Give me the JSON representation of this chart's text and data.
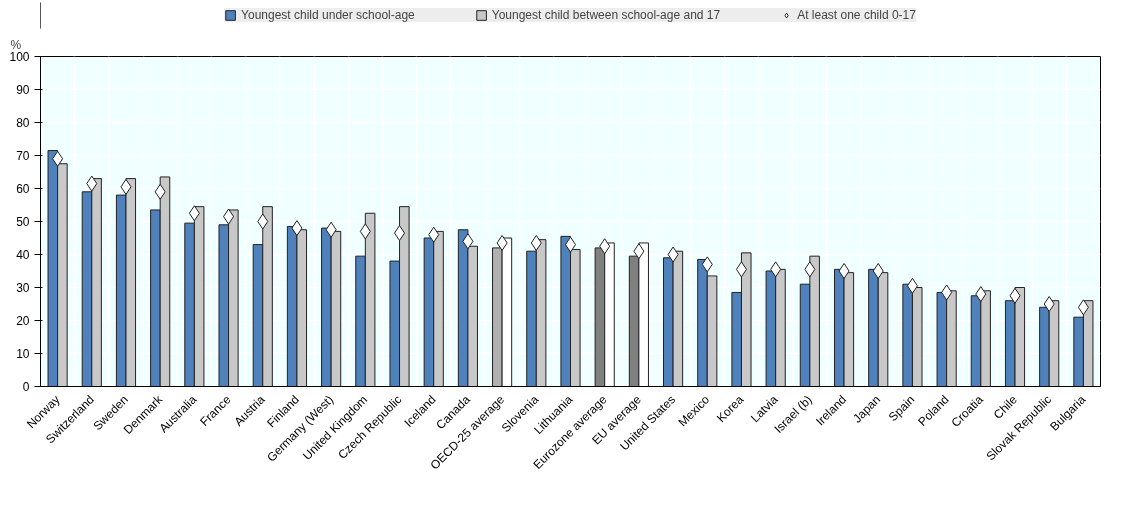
{
  "chart_data": {
    "type": "bar",
    "ylabel": "%",
    "categories": [
      "Norway",
      "Switzerland",
      "Sweden",
      "Denmark",
      "Australia",
      "France",
      "Austria",
      "Finland",
      "Germany (West)",
      "United Kingdom",
      "Czech Republic",
      "Iceland",
      "Canada",
      "OECD-25 average",
      "Slovenia",
      "Lithuania",
      "Eurozone average",
      "EU average",
      "United States",
      "Mexico",
      "Korea",
      "Latvia",
      "Israel (b)",
      "Ireland",
      "Japan",
      "Spain",
      "Poland",
      "Croatia",
      "Chile",
      "Slovak Republic",
      "Bulgaria"
    ],
    "series": [
      {
        "name": "Youngest child under school-age",
        "color": "#4f81bd",
        "colors": [
          "#4f81bd",
          "#4f81bd",
          "#4f81bd",
          "#4f81bd",
          "#4f81bd",
          "#4f81bd",
          "#4f81bd",
          "#4f81bd",
          "#4f81bd",
          "#4f81bd",
          "#4f81bd",
          "#4f81bd",
          "#4f81bd",
          "#b0b0b0",
          "#4f81bd",
          "#4f81bd",
          "#808080",
          "#808080",
          "#4f81bd",
          "#4f81bd",
          "#4f81bd",
          "#4f81bd",
          "#4f81bd",
          "#4f81bd",
          "#4f81bd",
          "#4f81bd",
          "#4f81bd",
          "#4f81bd",
          "#4f81bd",
          "#4f81bd",
          "#4f81bd"
        ],
        "values": [
          71.5,
          59,
          58,
          53.5,
          49.5,
          49,
          43,
          48.5,
          48,
          39.5,
          38,
          45,
          47.5,
          42,
          41,
          45.5,
          42,
          39.5,
          39,
          38.5,
          28.5,
          35,
          31,
          35.5,
          35.5,
          31,
          28.5,
          27.5,
          26,
          24,
          21
        ]
      },
      {
        "name": "Youngest child between school-age and 17",
        "color": "#c8c8c8",
        "colors": [
          "#c8c8c8",
          "#c8c8c8",
          "#c8c8c8",
          "#c8c8c8",
          "#c8c8c8",
          "#c8c8c8",
          "#c8c8c8",
          "#c8c8c8",
          "#c8c8c8",
          "#c8c8c8",
          "#c8c8c8",
          "#c8c8c8",
          "#c8c8c8",
          "#ffffff",
          "#c8c8c8",
          "#c8c8c8",
          "#ffffff",
          "#ffffff",
          "#c8c8c8",
          "#c8c8c8",
          "#c8c8c8",
          "#c8c8c8",
          "#c8c8c8",
          "#c8c8c8",
          "#c8c8c8",
          "#c8c8c8",
          "#c8c8c8",
          "#c8c8c8",
          "#c8c8c8",
          "#c8c8c8",
          "#c8c8c8"
        ],
        "values": [
          67.5,
          63,
          63,
          63.5,
          54.5,
          53.5,
          54.5,
          47.5,
          47,
          52.5,
          54.5,
          47,
          42.5,
          45,
          44.5,
          41.5,
          43.5,
          43.5,
          41,
          33.5,
          40.5,
          35.5,
          39.5,
          34.5,
          34.5,
          30,
          29,
          29,
          30,
          26,
          26
        ]
      },
      {
        "name": "At least one child 0-17",
        "type": "scatter",
        "marker": "diamond",
        "color": "#ffffff",
        "values": [
          69,
          61.5,
          60.5,
          59,
          52.5,
          51.5,
          50,
          48,
          47.5,
          47,
          46.5,
          46,
          44,
          43.5,
          43.5,
          43,
          42.5,
          41,
          40,
          37,
          35.5,
          35.5,
          35.5,
          35,
          35,
          30.5,
          28.5,
          28,
          27.5,
          25,
          24
        ]
      }
    ],
    "ylim": [
      0,
      100
    ],
    "yticks": [
      0,
      10,
      20,
      30,
      40,
      50,
      60,
      70,
      80,
      90,
      100
    ],
    "grid": true,
    "legend": "top"
  }
}
